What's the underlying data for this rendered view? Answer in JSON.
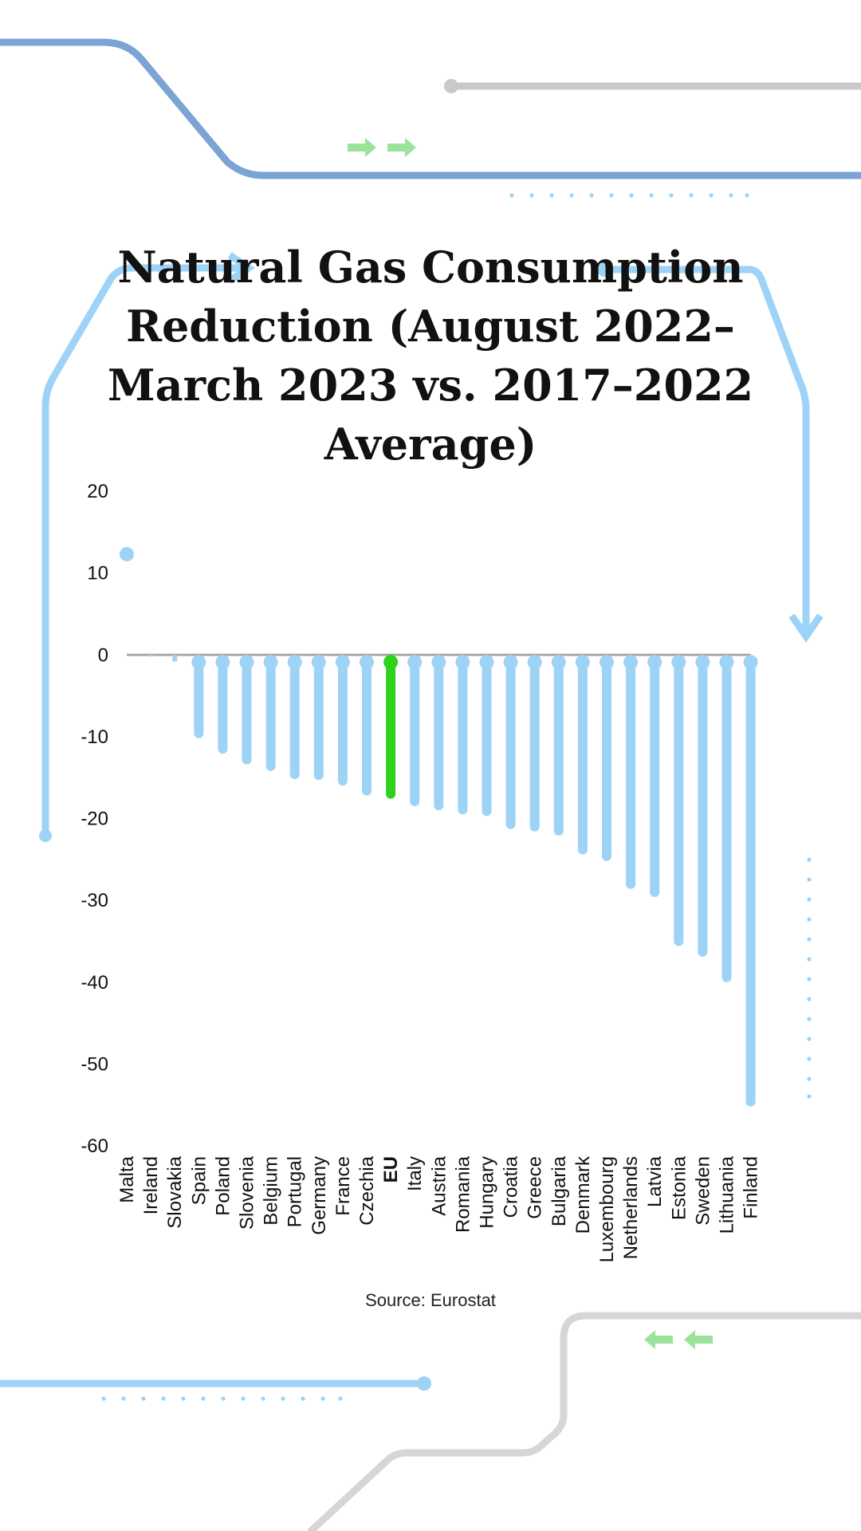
{
  "colors": {
    "bar": "#9dd3f6",
    "highlight_bar": "#2ed11b",
    "deco_blue_dark": "#7ba3d3",
    "deco_blue_light": "#9dd3f6",
    "deco_gray": "#c9c9c9",
    "deco_gray_light": "#d6d6d6",
    "deco_arrow_green": "#9be29a",
    "axis_line": "#aaaaaa",
    "text": "#111111"
  },
  "icons": [
    "double-right-arrow-icon",
    "double-left-arrow-icon"
  ],
  "source_text": "Source: Eurostat",
  "chart_data": {
    "type": "bar",
    "style": "lollipop",
    "title": "Natural Gas Consumption Reduction (August 2022–March 2023 vs. 2017–2022 Average)",
    "xlabel": "",
    "ylabel": "",
    "ylim": [
      -60,
      20
    ],
    "yticks": [
      20,
      10,
      0,
      -10,
      -20,
      -30,
      -40,
      -50,
      -60
    ],
    "grid": false,
    "highlight": "EU",
    "categories": [
      "Malta",
      "Ireland",
      "Slovakia",
      "Spain",
      "Poland",
      "Slovenia",
      "Belgium",
      "Portugal",
      "Germany",
      "France",
      "Czechia",
      "EU",
      "Italy",
      "Austria",
      "Romania",
      "Hungary",
      "Croatia",
      "Greece",
      "Bulgaria",
      "Denmark",
      "Luxembourg",
      "Netherlands",
      "Latvia",
      "Estonia",
      "Sweden",
      "Lithuania",
      "Finland"
    ],
    "values": [
      12.3,
      -0.2,
      -0.8,
      -9.6,
      -11.5,
      -12.8,
      -13.6,
      -14.6,
      -14.7,
      -15.4,
      -16.6,
      -17.0,
      -17.9,
      -18.4,
      -18.9,
      -19.1,
      -20.7,
      -21.0,
      -21.5,
      -23.8,
      -24.6,
      -28.0,
      -29.0,
      -35.0,
      -36.3,
      -39.4,
      -54.6
    ]
  }
}
